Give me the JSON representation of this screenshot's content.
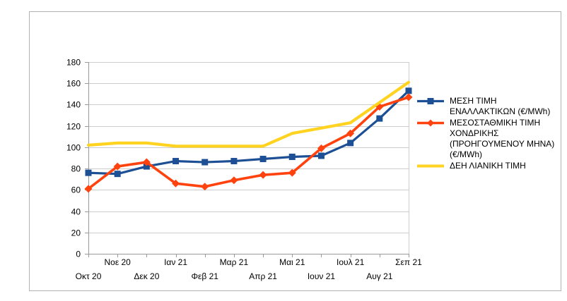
{
  "chart_data": {
    "type": "line",
    "title": "",
    "categories": [
      "Οκτ 20",
      "Νοε 20",
      "Δεκ 20",
      "Ιαν 21",
      "Φεβ 21",
      "Μαρ 21",
      "Απρ 21",
      "Μαι 21",
      "Ιουν 21",
      "Ιουλ 21",
      "Αυγ 21",
      "Σεπ 21"
    ],
    "series": [
      {
        "name": "ΜΕΣΗ ΤΙΜΗ ΕΝΑΛΛΑΚΤΙΚΩΝ (€/MWh)",
        "color": "#1d4f94",
        "marker": "square",
        "values": [
          76,
          75,
          82,
          87,
          86,
          87,
          89,
          91,
          92,
          104,
          127,
          153
        ]
      },
      {
        "name": "ΜΕΣΟΣΤΑΘΜΙΚΗ ΤΙΜΗ ΧΟΝΔΡΙΚΗΣ (ΠΡΟΗΓΟΥΜΕΝΟΥ ΜΗΝΑ) (€/MWh)",
        "color": "#ff420e",
        "marker": "diamond",
        "values": [
          61,
          82,
          86,
          66,
          63,
          69,
          74,
          76,
          99,
          113,
          138,
          147
        ]
      },
      {
        "name": "ΔΕΗ ΛΙΑΝΙΚΗ ΤΙΜΗ",
        "color": "#ffd320",
        "marker": "none",
        "values": [
          102,
          104,
          104,
          101,
          101,
          101,
          101,
          113,
          118,
          123,
          142,
          161
        ]
      }
    ],
    "y_axis": {
      "min": 0,
      "max": 180,
      "step": 20,
      "tick_labels": [
        "0",
        "20",
        "40",
        "60",
        "80",
        "100",
        "120",
        "140",
        "160",
        "180"
      ]
    },
    "x_axis": {
      "stagger": true
    },
    "legend_position": "right",
    "grid": "horizontal",
    "style": {
      "grid_color": "#cdcdcd",
      "axis_color": "#999999",
      "frame_border_color": "#b2b2b2",
      "text_color": "#000000",
      "background": "#ffffff"
    }
  }
}
